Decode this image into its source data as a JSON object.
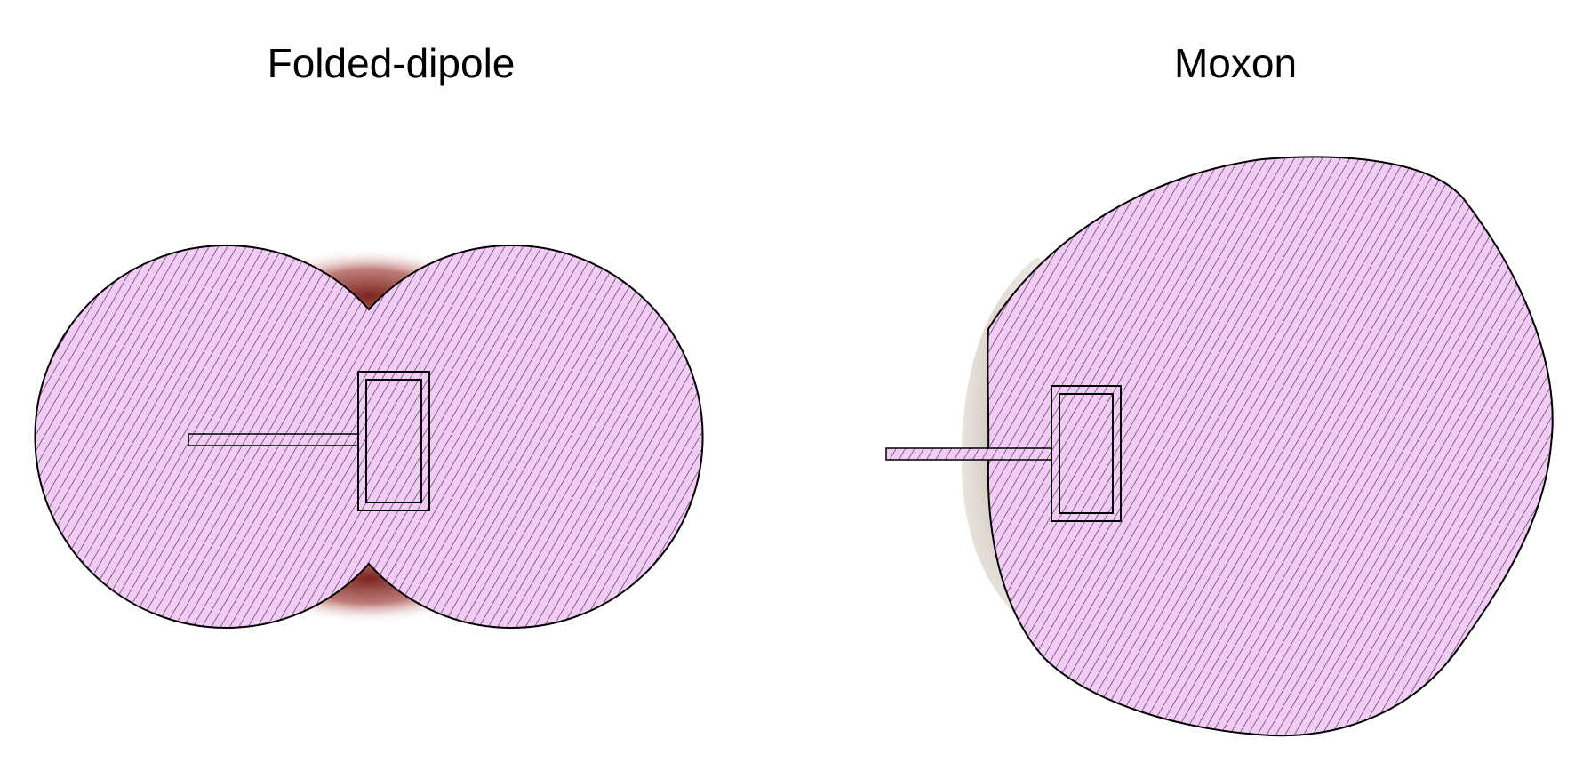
{
  "figure": {
    "left_panel": {
      "title": "Folded-dipole",
      "pattern_fill": "#f3cbf7",
      "hatch_color": "#2a2a2a",
      "shadow_color": "#7a2420"
    },
    "right_panel": {
      "title": "Moxon",
      "pattern_fill": "#f3cbf7",
      "hatch_color": "#2a2a2a",
      "shadow_color": "#c9bfb3"
    },
    "outline_color": "#000000"
  }
}
